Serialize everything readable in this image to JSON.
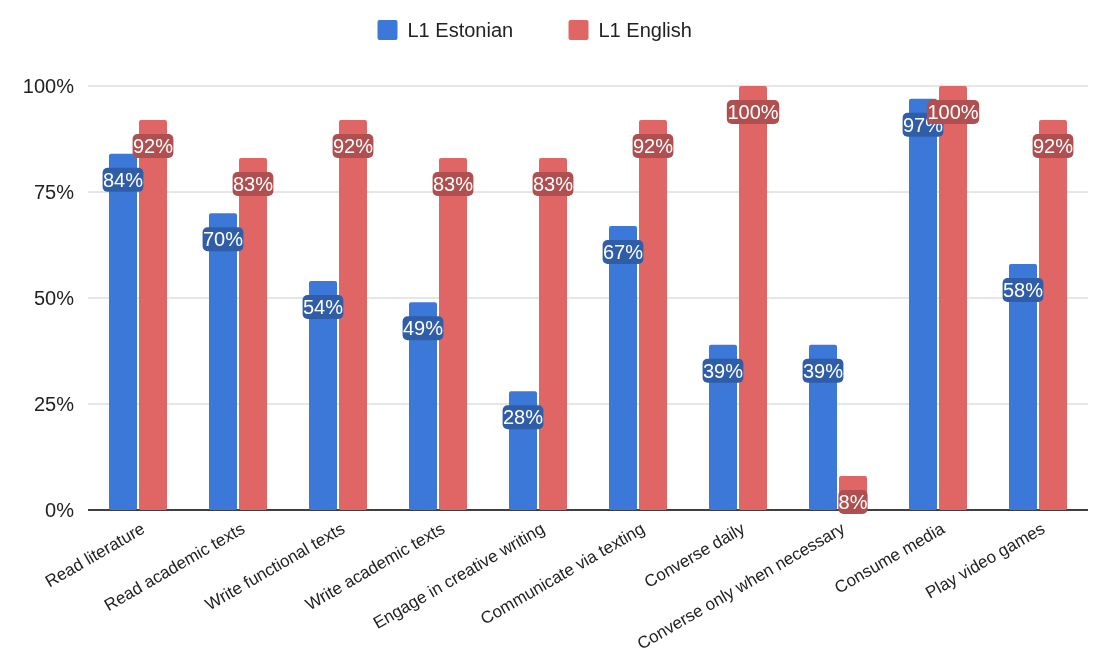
{
  "chart_data": {
    "type": "bar",
    "categories": [
      "Read literature",
      "Read academic texts",
      "Write functional texts",
      "Write academic texts",
      "Engage in creative writing",
      "Communicate via texting",
      "Converse daily",
      "Converse only when necessary",
      "Consume media",
      "Play video games"
    ],
    "series": [
      {
        "name": "L1 Estonian",
        "color": "#3c78d8",
        "values": [
          84,
          70,
          54,
          49,
          28,
          67,
          39,
          39,
          97,
          58
        ],
        "value_labels": [
          "84%",
          "70%",
          "54%",
          "49%",
          "28%",
          "67%",
          "39%",
          "39%",
          "97%",
          "58%"
        ]
      },
      {
        "name": "L1 English",
        "color": "#e06666",
        "values": [
          92,
          83,
          92,
          83,
          83,
          92,
          100,
          8,
          100,
          92
        ],
        "value_labels": [
          "92%",
          "83%",
          "92%",
          "83%",
          "83%",
          "92%",
          "100%",
          "8%",
          "100%",
          "92%"
        ]
      }
    ],
    "ylim": [
      0,
      100
    ],
    "yticks": [
      {
        "value": 0,
        "label": "0%"
      },
      {
        "value": 25,
        "label": "25%"
      },
      {
        "value": 50,
        "label": "50%"
      },
      {
        "value": 75,
        "label": "75%"
      },
      {
        "value": 100,
        "label": "100%"
      }
    ],
    "grid": "y",
    "legend": "top"
  }
}
